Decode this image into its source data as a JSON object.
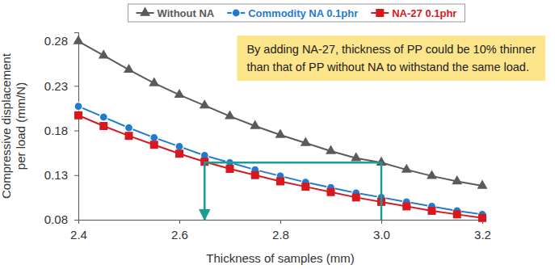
{
  "chart_data": {
    "type": "line",
    "xlabel": "Thickness of samples (mm)",
    "ylabel": [
      "Compressive displacement",
      "per load (mm/N)"
    ],
    "annotation": [
      "By adding NA-27, thickness of PP could be 10% thinner",
      "than that of PP without NA to withstand the same load."
    ],
    "x": [
      2.4,
      2.45,
      2.5,
      2.55,
      2.6,
      2.65,
      2.7,
      2.75,
      2.8,
      2.85,
      2.9,
      2.95,
      3.0,
      3.05,
      3.1,
      3.15,
      3.2
    ],
    "series": [
      {
        "name": "Without NA",
        "color": "#5a5a5a",
        "marker": "triangle",
        "values": [
          0.28,
          0.264,
          0.248,
          0.233,
          0.22,
          0.208,
          0.196,
          0.185,
          0.175,
          0.166,
          0.157,
          0.149,
          0.144,
          0.136,
          0.129,
          0.123,
          0.118
        ]
      },
      {
        "name": "Commodity NA 0.1phr",
        "color": "#1f7bd0",
        "marker": "circle",
        "values": [
          0.207,
          0.195,
          0.183,
          0.172,
          0.162,
          0.152,
          0.144,
          0.136,
          0.129,
          0.122,
          0.116,
          0.11,
          0.105,
          0.1,
          0.095,
          0.09,
          0.086
        ]
      },
      {
        "name": "NA-27 0.1phr",
        "color": "#d7191f",
        "marker": "square",
        "values": [
          0.197,
          0.185,
          0.174,
          0.164,
          0.154,
          0.145,
          0.137,
          0.13,
          0.123,
          0.117,
          0.111,
          0.105,
          0.1,
          0.095,
          0.09,
          0.086,
          0.082
        ]
      }
    ],
    "arrow": {
      "x": [
        3.0,
        3.0,
        2.65,
        2.65
      ],
      "y": [
        0.08,
        0.144,
        0.144,
        0.08
      ],
      "color": "#1a9e93"
    },
    "xlim": [
      2.4,
      3.2
    ],
    "xticks": [
      2.4,
      2.6,
      2.8,
      {
        "value": 3.0,
        "label": "3.0"
      },
      3.2
    ],
    "ylim": [
      0.08,
      0.29
    ],
    "yticks": [
      0.08,
      0.13,
      0.18,
      0.23,
      0.28
    ],
    "grid": false,
    "legend": "top"
  }
}
